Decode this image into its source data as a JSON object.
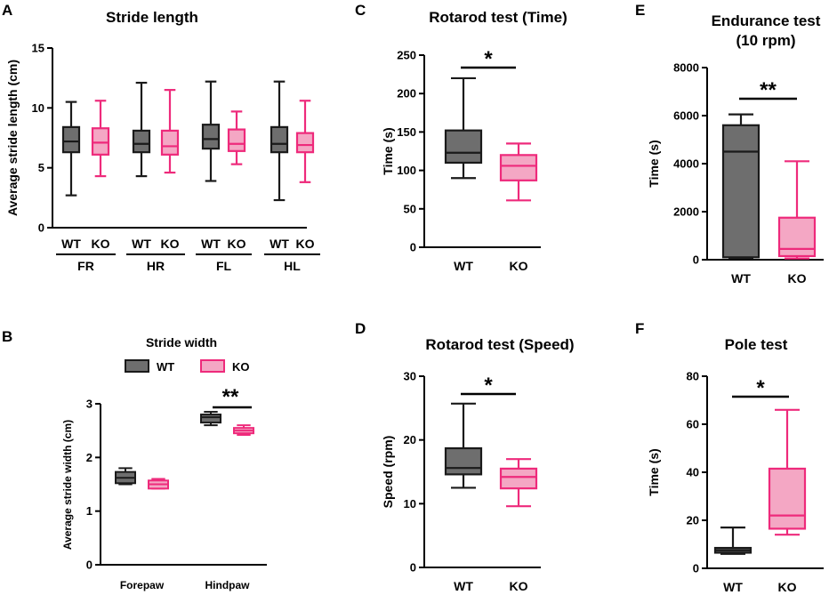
{
  "colors": {
    "wt_fill": "#6e6e6e",
    "wt_stroke": "#1a1a1a",
    "ko_fill": "#f4a7c4",
    "ko_stroke": "#ee2a7b"
  },
  "chart_data": [
    {
      "panel": "A",
      "type": "box",
      "title": "Stride length",
      "ylabel": "Average stride length (cm)",
      "ylim": [
        0,
        15
      ],
      "yticks": [
        "0",
        "5",
        "10",
        "15"
      ],
      "groups": [
        "FR",
        "HR",
        "FL",
        "HL"
      ],
      "group_labels": [
        "WT",
        "KO"
      ],
      "series": [
        {
          "group": "FR",
          "name": "WT",
          "min": 2.7,
          "q1": 6.3,
          "median": 7.2,
          "q3": 8.4,
          "max": 10.5
        },
        {
          "group": "FR",
          "name": "KO",
          "min": 4.3,
          "q1": 6.1,
          "median": 7.1,
          "q3": 8.3,
          "max": 10.6
        },
        {
          "group": "HR",
          "name": "WT",
          "min": 4.3,
          "q1": 6.3,
          "median": 7.0,
          "q3": 8.1,
          "max": 12.1
        },
        {
          "group": "HR",
          "name": "KO",
          "min": 4.6,
          "q1": 6.1,
          "median": 6.8,
          "q3": 8.1,
          "max": 11.5
        },
        {
          "group": "FL",
          "name": "WT",
          "min": 3.9,
          "q1": 6.6,
          "median": 7.4,
          "q3": 8.6,
          "max": 12.2
        },
        {
          "group": "FL",
          "name": "KO",
          "min": 5.3,
          "q1": 6.4,
          "median": 7.0,
          "q3": 8.2,
          "max": 9.7
        },
        {
          "group": "HL",
          "name": "WT",
          "min": 2.3,
          "q1": 6.3,
          "median": 7.0,
          "q3": 8.4,
          "max": 12.2
        },
        {
          "group": "HL",
          "name": "KO",
          "min": 3.8,
          "q1": 6.3,
          "median": 6.9,
          "q3": 7.9,
          "max": 10.6
        }
      ]
    },
    {
      "panel": "B",
      "type": "box",
      "title": "Stride width",
      "ylabel": "Average stride width (cm)",
      "ylim": [
        0,
        3
      ],
      "yticks": [
        "0",
        "1",
        "2",
        "3"
      ],
      "categories": [
        "Forepaw",
        "Hindpaw"
      ],
      "legend": [
        "WT",
        "KO"
      ],
      "series": [
        {
          "category": "Forepaw",
          "name": "WT",
          "min": 1.5,
          "q1": 1.52,
          "median": 1.62,
          "q3": 1.73,
          "max": 1.8
        },
        {
          "category": "Forepaw",
          "name": "KO",
          "min": 1.42,
          "q1": 1.42,
          "median": 1.5,
          "q3": 1.57,
          "max": 1.6
        },
        {
          "category": "Hindpaw",
          "name": "WT",
          "min": 2.6,
          "q1": 2.65,
          "median": 2.75,
          "q3": 2.8,
          "max": 2.85
        },
        {
          "category": "Hindpaw",
          "name": "KO",
          "min": 2.42,
          "q1": 2.45,
          "median": 2.5,
          "q3": 2.55,
          "max": 2.6
        }
      ],
      "significance": [
        {
          "category": "Hindpaw",
          "label": "**"
        }
      ]
    },
    {
      "panel": "C",
      "type": "box",
      "title": "Rotarod test (Time)",
      "ylabel": "Time (s)",
      "ylim": [
        0,
        250
      ],
      "yticks": [
        "0",
        "50",
        "100",
        "150",
        "200",
        "250"
      ],
      "categories": [
        "WT",
        "KO"
      ],
      "series": [
        {
          "name": "WT",
          "min": 90,
          "q1": 110,
          "median": 123,
          "q3": 152,
          "max": 220
        },
        {
          "name": "KO",
          "min": 61,
          "q1": 87,
          "median": 106,
          "q3": 120,
          "max": 135
        }
      ],
      "significance": "*"
    },
    {
      "panel": "D",
      "type": "box",
      "title": "Rotarod test (Speed)",
      "ylabel": "Speed (rpm)",
      "ylim": [
        0,
        30
      ],
      "yticks": [
        "0",
        "10",
        "20",
        "30"
      ],
      "categories": [
        "WT",
        "KO"
      ],
      "series": [
        {
          "name": "WT",
          "min": 12.5,
          "q1": 14.6,
          "median": 15.6,
          "q3": 18.7,
          "max": 25.7
        },
        {
          "name": "KO",
          "min": 9.6,
          "q1": 12.4,
          "median": 14.2,
          "q3": 15.5,
          "max": 17.0
        }
      ],
      "significance": "*"
    },
    {
      "panel": "E",
      "type": "box",
      "title": [
        "Endurance test",
        "(10 rpm)"
      ],
      "ylabel": "Time (s)",
      "ylim": [
        0,
        8000
      ],
      "yticks": [
        "0",
        "2000",
        "4000",
        "6000",
        "8000"
      ],
      "categories": [
        "WT",
        "KO"
      ],
      "series": [
        {
          "name": "WT",
          "min": 50,
          "q1": 100,
          "median": 4500,
          "q3": 5600,
          "max": 6050
        },
        {
          "name": "KO",
          "min": 50,
          "q1": 150,
          "median": 450,
          "q3": 1750,
          "max": 4100
        }
      ],
      "significance": "**"
    },
    {
      "panel": "F",
      "type": "box",
      "title": "Pole test",
      "ylabel": "Time (s)",
      "ylim": [
        0,
        80
      ],
      "yticks": [
        "0",
        "20",
        "40",
        "60",
        "80"
      ],
      "categories": [
        "WT",
        "KO"
      ],
      "series": [
        {
          "name": "WT",
          "min": 6,
          "q1": 6.5,
          "median": 7.5,
          "q3": 8.5,
          "max": 17
        },
        {
          "name": "KO",
          "min": 14,
          "q1": 16.5,
          "median": 22,
          "q3": 41.5,
          "max": 66
        }
      ],
      "significance": "*"
    }
  ]
}
